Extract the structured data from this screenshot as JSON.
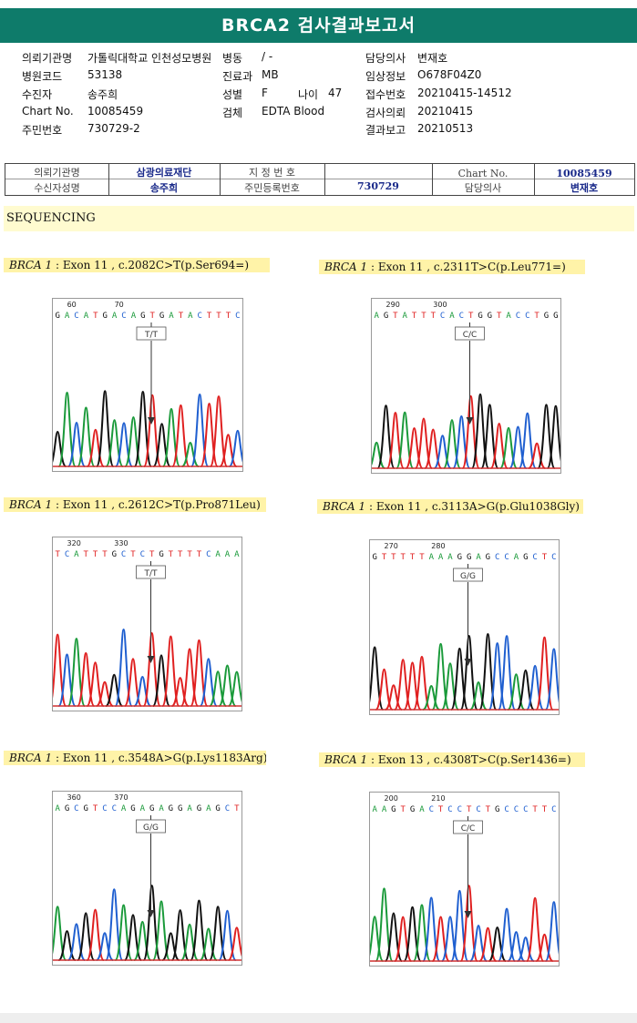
{
  "header": {
    "title": "BRCA2 검사결과보고서"
  },
  "info": [
    {
      "label": "의뢰기관명",
      "value": "가톨릭대학교 인천성모병원"
    },
    {
      "label": "병동",
      "value": "/ -"
    },
    {
      "label": "담당의사",
      "value": "변재호"
    },
    {
      "label": "병원코드",
      "value": "53138"
    },
    {
      "label": "진료과",
      "value": "MB"
    },
    {
      "label": "임상정보",
      "value": "O678F04Z0"
    },
    {
      "label": "수진자",
      "value": "송주희"
    },
    {
      "label": "성별",
      "value": "F"
    },
    {
      "label": "나이",
      "value": "47"
    },
    {
      "label": "접수번호",
      "value": "20210415-14512"
    },
    {
      "label": "Chart No.",
      "value": "10085459"
    },
    {
      "label": "검체",
      "value": "EDTA Blood"
    },
    {
      "label": "검사의뢰",
      "value": "20210415"
    },
    {
      "label": "주민번호",
      "value": "730729-2"
    },
    {
      "label": "결과보고",
      "value": "20210513"
    }
  ],
  "table": {
    "inst_label": "의뢰기관명",
    "inst_value": "삼광의료재단",
    "designated_label": "지 정 번 호",
    "designated_value": "",
    "chart_label": "Chart No.",
    "chart_value": "10085459",
    "patient_label": "수신자성명",
    "patient_value": "송주희",
    "rrn_label": "주민등록번호",
    "rrn_value": "730729",
    "doctor_label": "담당의사",
    "doctor_value": "변재호"
  },
  "section": {
    "title": "SEQUENCING"
  },
  "colors": {
    "A": "#1a9a3a",
    "C": "#1f5fd0",
    "G": "#111111",
    "T": "#e02020",
    "header": "#0e7b6a"
  },
  "variants": [
    {
      "gene": "BRCA 1",
      "desc": " : Exon 11 , c.2082C>T(p.Ser694=)",
      "seq": "GACATGACAGTGATACTTTC",
      "pos1": "60",
      "pos2": "70",
      "genotype": "T/T"
    },
    {
      "gene": "BRCA 1",
      "desc": " : Exon 11 , c.2311T>C(p.Leu771=)",
      "seq": "AGTATTTCACTGGTACCTGG",
      "pos1": "290",
      "pos2": "300",
      "genotype": "C/C"
    },
    {
      "gene": "BRCA 1",
      "desc": " : Exon 11 , c.2612C>T(p.Pro871Leu)",
      "seq": "TCATTTGCTCTGTTTTCAAA",
      "pos1": "320",
      "pos2": "330",
      "genotype": "T/T"
    },
    {
      "gene": "BRCA 1",
      "desc": " : Exon 11 , c.3113A>G(p.Glu1038Gly)",
      "seq": "GTTTTTAAAGGAGCCAGCTC",
      "pos1": "270",
      "pos2": "280",
      "genotype": "G/G"
    },
    {
      "gene": "BRCA 1",
      "desc": " : Exon 11 , c.3548A>G(p.Lys1183Arg)",
      "seq": "AGCGTCCAGAGAGGAGAGCT",
      "pos1": "360",
      "pos2": "370",
      "genotype": "G/G"
    },
    {
      "gene": "BRCA 1",
      "desc": " : Exon 13 , c.4308T>C(p.Ser1436=)",
      "seq": "AAGTGACTCCTCTGCCCTTC",
      "pos1": "200",
      "pos2": "210",
      "genotype": "C/C"
    }
  ]
}
